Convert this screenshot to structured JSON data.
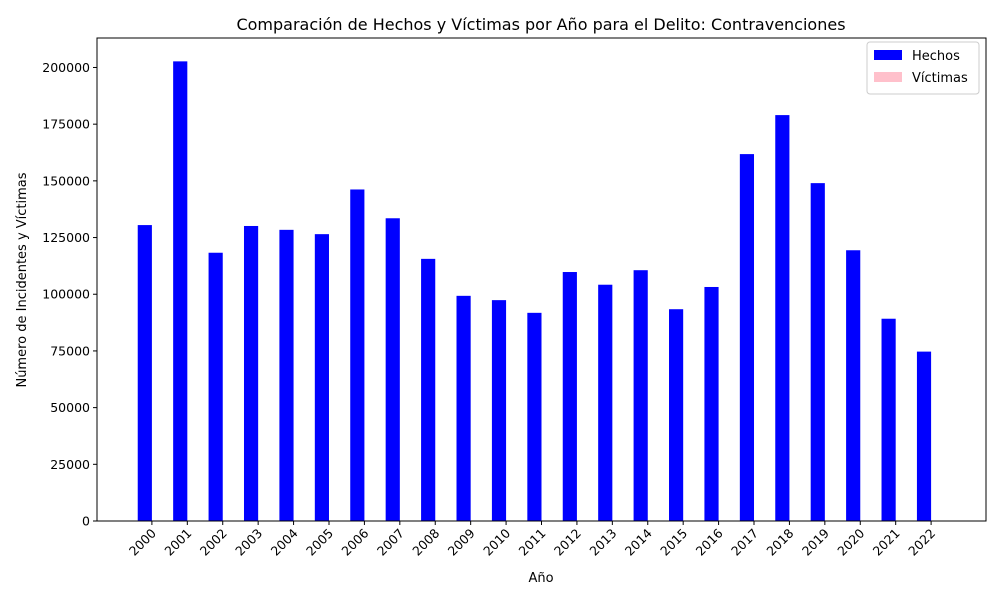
{
  "chart_data": {
    "type": "bar",
    "title": "Comparación de Hechos y Víctimas por Año para el Delito: Contravenciones",
    "xlabel": "Año",
    "ylabel": "Número de Incidentes y Víctimas",
    "categories": [
      "2000",
      "2001",
      "2002",
      "2003",
      "2004",
      "2005",
      "2006",
      "2007",
      "2008",
      "2009",
      "2010",
      "2011",
      "2012",
      "2013",
      "2014",
      "2015",
      "2016",
      "2017",
      "2018",
      "2019",
      "2020",
      "2021",
      "2022"
    ],
    "series": [
      {
        "name": "Hechos",
        "color": "#0000ff",
        "values": [
          130500,
          202700,
          118300,
          130100,
          128400,
          126500,
          146200,
          133500,
          115600,
          99300,
          97400,
          91800,
          109800,
          104200,
          110600,
          93400,
          103200,
          161800,
          179000,
          149000,
          119400,
          89200,
          74700
        ]
      },
      {
        "name": "Víctimas",
        "color": "#ffc0cb",
        "values": [
          0,
          0,
          0,
          0,
          0,
          0,
          0,
          0,
          0,
          0,
          0,
          0,
          0,
          0,
          0,
          0,
          0,
          0,
          0,
          0,
          0,
          0,
          0
        ]
      }
    ],
    "ylim": [
      0,
      213000
    ],
    "yticks": [
      "0",
      "25000",
      "50000",
      "75000",
      "100000",
      "125000",
      "150000",
      "175000",
      "200000"
    ],
    "grid": false,
    "legend_position": "top-right"
  }
}
